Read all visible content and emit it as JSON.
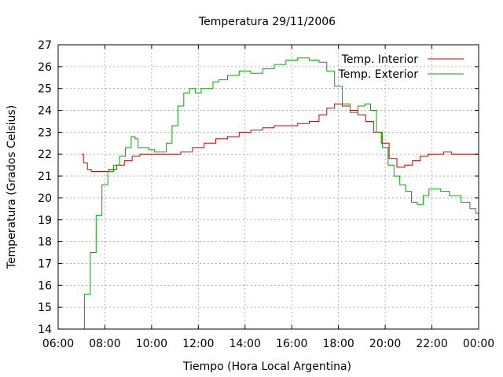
{
  "chart_data": {
    "type": "line",
    "title": "Temperatura 29/11/2006",
    "xlabel": "Tiempo (Hora Local Argentina)",
    "ylabel": "Temperatura (Grados Celsius)",
    "xlim": [
      "06:00",
      "00:00"
    ],
    "ylim": [
      14,
      27
    ],
    "x_ticks": [
      "06:00",
      "08:00",
      "10:00",
      "12:00",
      "14:00",
      "16:00",
      "18:00",
      "20:00",
      "22:00",
      "00:00"
    ],
    "y_ticks": [
      "14",
      "15",
      "16",
      "17",
      "18",
      "19",
      "20",
      "21",
      "22",
      "23",
      "24",
      "25",
      "26",
      "27"
    ],
    "grid": true,
    "legend_position": "top-right",
    "series": [
      {
        "name": "Temp. Interior",
        "color": "#cc0000",
        "x": [
          "07:00",
          "07:10",
          "07:20",
          "07:30",
          "07:40",
          "08:00",
          "08:20",
          "08:40",
          "09:00",
          "09:20",
          "09:40",
          "10:00",
          "10:30",
          "11:00",
          "11:30",
          "12:00",
          "12:30",
          "13:00",
          "13:30",
          "14:00",
          "14:30",
          "15:00",
          "15:30",
          "16:00",
          "16:30",
          "17:00",
          "17:20",
          "17:40",
          "18:00",
          "18:20",
          "18:40",
          "19:00",
          "19:20",
          "19:40",
          "20:00",
          "20:20",
          "20:40",
          "21:00",
          "21:20",
          "21:40",
          "22:00",
          "22:20",
          "22:40",
          "23:00",
          "23:20",
          "23:40",
          "00:00"
        ],
        "y": [
          22.0,
          21.6,
          21.3,
          21.2,
          21.2,
          21.2,
          21.3,
          21.5,
          21.7,
          21.9,
          22.0,
          22.0,
          22.0,
          22.0,
          22.1,
          22.3,
          22.5,
          22.7,
          22.8,
          23.0,
          23.1,
          23.2,
          23.3,
          23.3,
          23.4,
          23.5,
          23.8,
          24.1,
          24.3,
          24.2,
          24.0,
          23.8,
          23.5,
          23.0,
          22.5,
          21.8,
          21.4,
          21.5,
          21.7,
          21.9,
          22.0,
          22.0,
          22.1,
          22.0,
          22.0,
          22.0,
          22.0
        ]
      },
      {
        "name": "Temp. Exterior",
        "color": "#00aa00",
        "x": [
          "07:00",
          "07:15",
          "07:30",
          "07:45",
          "08:00",
          "08:15",
          "08:30",
          "08:45",
          "09:00",
          "09:15",
          "09:20",
          "09:30",
          "09:45",
          "10:00",
          "10:15",
          "10:30",
          "10:45",
          "11:00",
          "11:15",
          "11:30",
          "11:45",
          "12:00",
          "12:15",
          "12:30",
          "12:45",
          "13:00",
          "13:30",
          "14:00",
          "14:30",
          "15:00",
          "15:30",
          "16:00",
          "16:30",
          "17:00",
          "17:20",
          "17:40",
          "18:00",
          "18:20",
          "18:40",
          "19:00",
          "19:15",
          "19:30",
          "19:45",
          "20:00",
          "20:15",
          "20:30",
          "20:45",
          "21:00",
          "21:15",
          "21:30",
          "21:45",
          "22:00",
          "22:15",
          "22:30",
          "23:00",
          "23:30",
          "23:45",
          "00:00"
        ],
        "y": [
          14.0,
          15.6,
          17.5,
          19.2,
          20.6,
          21.2,
          21.5,
          21.9,
          22.3,
          22.8,
          22.7,
          22.3,
          22.3,
          22.2,
          22.1,
          22.1,
          22.5,
          23.3,
          24.2,
          24.8,
          25.0,
          24.8,
          25.0,
          25.0,
          25.3,
          25.4,
          25.6,
          25.8,
          25.7,
          25.9,
          26.1,
          26.3,
          26.4,
          26.3,
          26.2,
          25.8,
          25.1,
          24.3,
          23.9,
          24.2,
          24.3,
          24.0,
          23.0,
          22.3,
          21.5,
          21.0,
          20.6,
          20.3,
          19.8,
          19.7,
          20.1,
          20.4,
          20.4,
          20.3,
          20.1,
          19.8,
          19.5,
          19.3
        ]
      }
    ]
  }
}
